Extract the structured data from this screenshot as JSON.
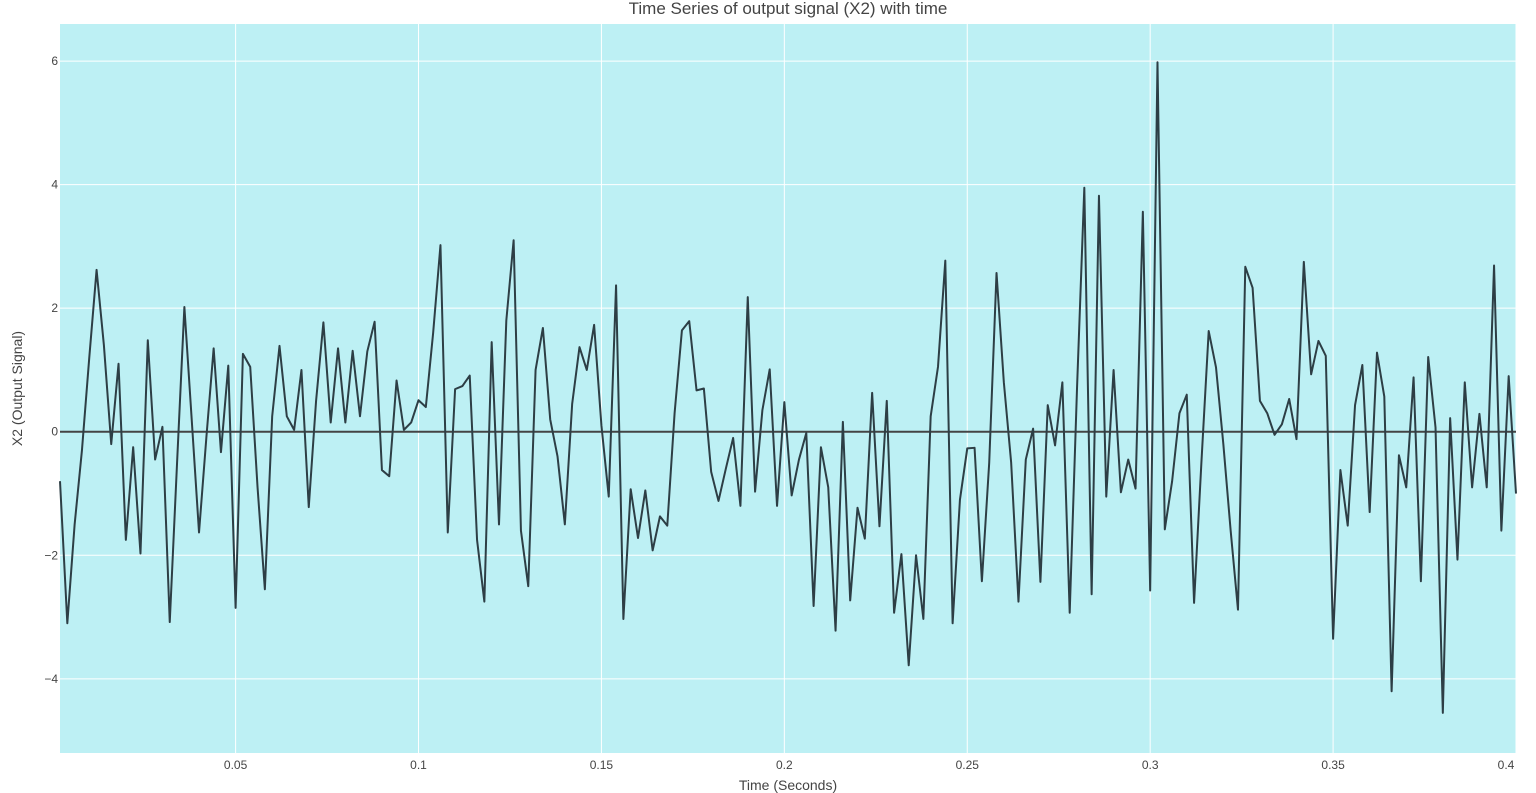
{
  "chart_data": {
    "type": "line",
    "title": "Time Series of output signal (X2) with time",
    "xlabel": "Time (Seconds)",
    "ylabel": "X2 (Output Signal)",
    "xlim": [
      0.002,
      0.4
    ],
    "ylim": [
      -5.2,
      6.6
    ],
    "x_ticks": [
      0.05,
      0.1,
      0.15,
      0.2,
      0.25,
      0.3,
      0.35,
      0.4
    ],
    "x_tick_labels": [
      "0.05",
      "0.1",
      "0.15",
      "0.2",
      "0.25",
      "0.3",
      "0.35",
      "0.4"
    ],
    "y_ticks": [
      -4,
      -2,
      0,
      2,
      4,
      6
    ],
    "y_tick_labels": [
      "−4",
      "−2",
      "0",
      "2",
      "4",
      "6"
    ],
    "grid": true,
    "zero_line": true,
    "colors": {
      "plot_bg": "#bdf0f4",
      "line": "#2d3e45",
      "grid": "#ffffff",
      "zero_line": "#444444"
    },
    "series": [
      {
        "x_start": 0.002,
        "x_step": 0.002,
        "values": [
          -0.8,
          -3.1,
          -1.5,
          -0.3,
          1.2,
          2.62,
          1.4,
          -0.2,
          1.1,
          -1.75,
          -0.25,
          -1.97,
          1.48,
          -0.45,
          0.08,
          -3.08,
          -0.5,
          2.02,
          0.2,
          -1.63,
          -0.1,
          1.35,
          -0.33,
          1.07,
          -2.85,
          1.26,
          1.05,
          -0.9,
          -2.55,
          0.25,
          1.39,
          0.25,
          0.03,
          1.0,
          -1.22,
          0.5,
          1.77,
          0.15,
          1.35,
          0.15,
          1.31,
          0.25,
          1.3,
          1.78,
          -0.62,
          -0.72,
          0.83,
          0.03,
          0.15,
          0.51,
          0.4,
          1.6,
          3.02,
          -1.63,
          0.69,
          0.74,
          0.91,
          -1.75,
          -2.75,
          1.45,
          -1.5,
          1.8,
          3.1,
          -1.6,
          -2.5,
          1.0,
          1.68,
          0.2,
          -0.4,
          -1.5,
          0.45,
          1.37,
          1.0,
          1.73,
          0.1,
          -1.05,
          2.37,
          -3.03,
          -0.93,
          -1.72,
          -0.95,
          -1.92,
          -1.37,
          -1.52,
          0.3,
          1.64,
          1.79,
          0.67,
          0.7,
          -0.65,
          -1.12,
          -0.6,
          -0.1,
          -1.2,
          2.18,
          -0.97,
          0.35,
          1.01,
          -1.2,
          0.48,
          -1.03,
          -0.45,
          -0.02,
          -2.82,
          -0.25,
          -0.9,
          -3.22,
          0.16,
          -2.73,
          -1.23,
          -1.73,
          0.63,
          -1.53,
          0.5,
          -2.93,
          -1.98,
          -3.78,
          -2.0,
          -3.03,
          0.25,
          1.05,
          2.77,
          -3.1,
          -1.1,
          -0.27,
          -0.26,
          -2.42,
          -0.5,
          2.57,
          0.8,
          -0.5,
          -2.75,
          -0.45,
          0.05,
          -2.43,
          0.43,
          -0.22,
          0.8,
          -2.93,
          0.7,
          3.95,
          -2.63,
          3.82,
          -1.05,
          1.0,
          -0.98,
          -0.45,
          -0.92,
          3.56,
          -2.57,
          5.98,
          -1.58,
          -0.8,
          0.3,
          0.6,
          -2.77,
          -0.5,
          1.63,
          1.04,
          -0.2,
          -1.6,
          -2.88,
          2.67,
          2.33,
          0.5,
          0.3,
          -0.05,
          0.12,
          0.53,
          -0.12,
          2.75,
          0.93,
          1.47,
          1.23,
          -3.35,
          -0.62,
          -1.52,
          0.43,
          1.08,
          -1.3,
          1.28,
          0.57,
          -4.2,
          -0.38,
          -0.9,
          0.88,
          -2.42,
          1.21,
          0.07,
          -4.55,
          0.22,
          -2.07,
          0.8,
          -0.9,
          0.29,
          -0.9,
          2.69,
          -1.6,
          0.9,
          -1.0
        ]
      }
    ]
  }
}
